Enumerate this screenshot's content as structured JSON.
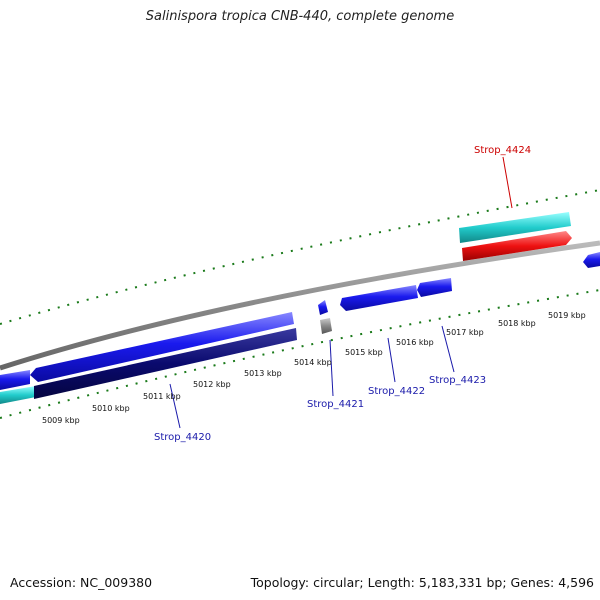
{
  "title": "Salinispora tropica CNB-440, complete genome",
  "footer": {
    "accession": "Accession: NC_009380",
    "topology": "Topology: circular; Length: 5,183,331 bp; Genes: 4,596"
  },
  "colors": {
    "background": "#ffffff",
    "backbone": "#888888",
    "tick": "#1a7a1a",
    "cds_forward": "#1a1aee",
    "cds_reverse_dark": "#0a0a6e",
    "rna_cyan": "#22cccc",
    "highlight_red": "#ee1111",
    "pseudo_gray": "#777777",
    "label_blue": "#1a1aaa",
    "label_red": "#cc0000"
  },
  "scale_labels": [
    "5009 kbp",
    "5010 kbp",
    "5011 kbp",
    "5012 kbp",
    "5013 kbp",
    "5014 kbp",
    "5015 kbp",
    "5016 kbp",
    "5017 kbp",
    "5018 kbp",
    "5019 kbp"
  ],
  "gene_labels": [
    {
      "id": "Strop_4420",
      "color": "blue"
    },
    {
      "id": "Strop_4421",
      "color": "blue"
    },
    {
      "id": "Strop_4422",
      "color": "blue"
    },
    {
      "id": "Strop_4423",
      "color": "blue"
    },
    {
      "id": "Strop_4424",
      "color": "red"
    }
  ]
}
